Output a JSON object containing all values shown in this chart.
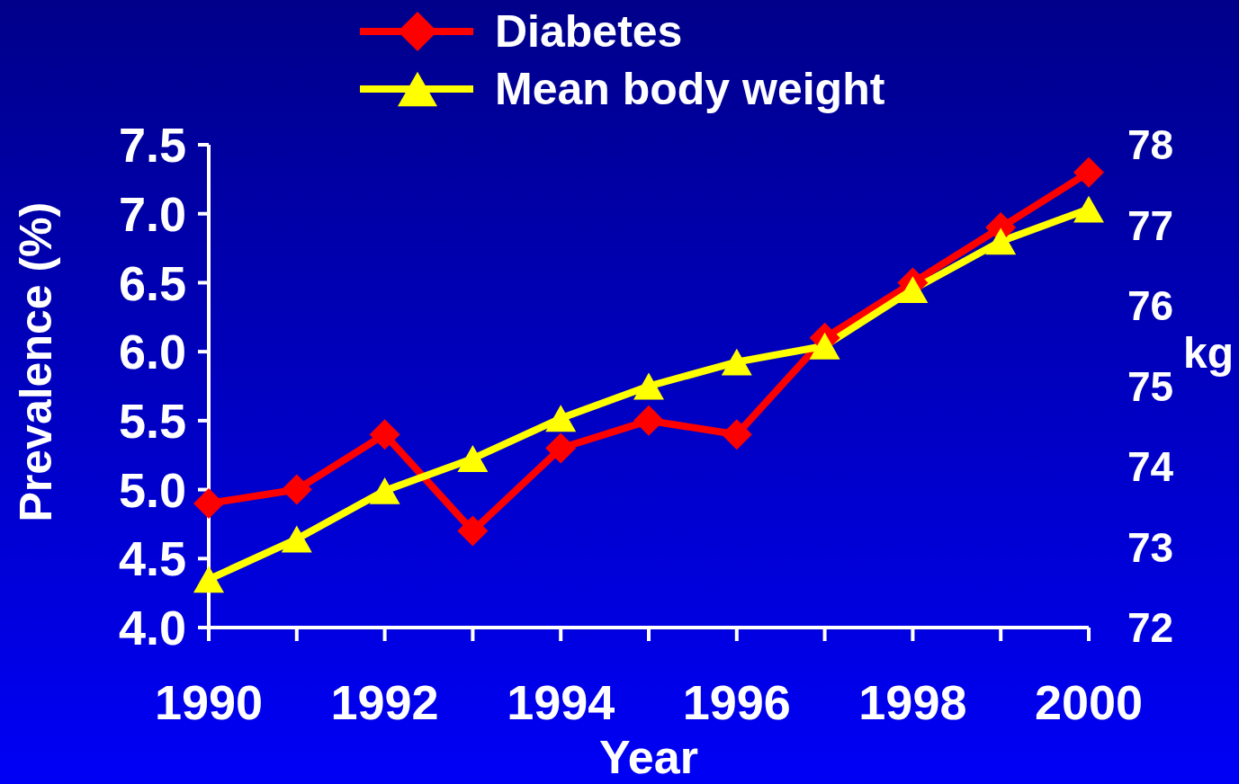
{
  "chart_data": {
    "type": "line",
    "xlabel": "Year",
    "ylabel": "Prevalence (%)",
    "y2label": "kg",
    "legend": "top",
    "line_style": "solid",
    "x": [
      1990,
      1991,
      1992,
      1993,
      1994,
      1995,
      1996,
      1997,
      1998,
      1999,
      2000
    ],
    "xlim": [
      1990,
      2000
    ],
    "xticks": [
      1990,
      {
        "value": 1991,
        "label": null
      },
      1992,
      {
        "value": 1993,
        "label": null
      },
      1994,
      {
        "value": 1995,
        "label": null
      },
      1996,
      {
        "value": 1997,
        "label": null
      },
      1998,
      {
        "value": 1999,
        "label": null
      },
      2000
    ],
    "ylim": [
      4,
      7.5
    ],
    "yticks": [
      {
        "value": 4,
        "label": "4.0"
      },
      4.5,
      {
        "value": 5,
        "label": "5.0"
      },
      5.5,
      {
        "value": 6,
        "label": "6.0"
      },
      6.5,
      {
        "value": 7,
        "label": "7.0"
      },
      7.5
    ],
    "y2lim": [
      72,
      78
    ],
    "y2ticks": [
      72,
      73,
      74,
      75,
      76,
      77,
      78
    ],
    "series": [
      {
        "name": "Diabetes",
        "color": "#ff0000",
        "marker": "diamond",
        "values": [
          4.9,
          5.0,
          5.4,
          4.7,
          5.3,
          5.5,
          5.4,
          6.1,
          6.5,
          6.9,
          7.3
        ]
      },
      {
        "name": "Mean body weight",
        "color": "#ffff00",
        "marker": "triangle",
        "axis": "y2",
        "values": [
          72.6,
          73.1,
          73.7,
          74.1,
          74.6,
          75.0,
          75.3,
          75.5,
          76.2,
          76.8,
          77.2
        ]
      }
    ]
  }
}
